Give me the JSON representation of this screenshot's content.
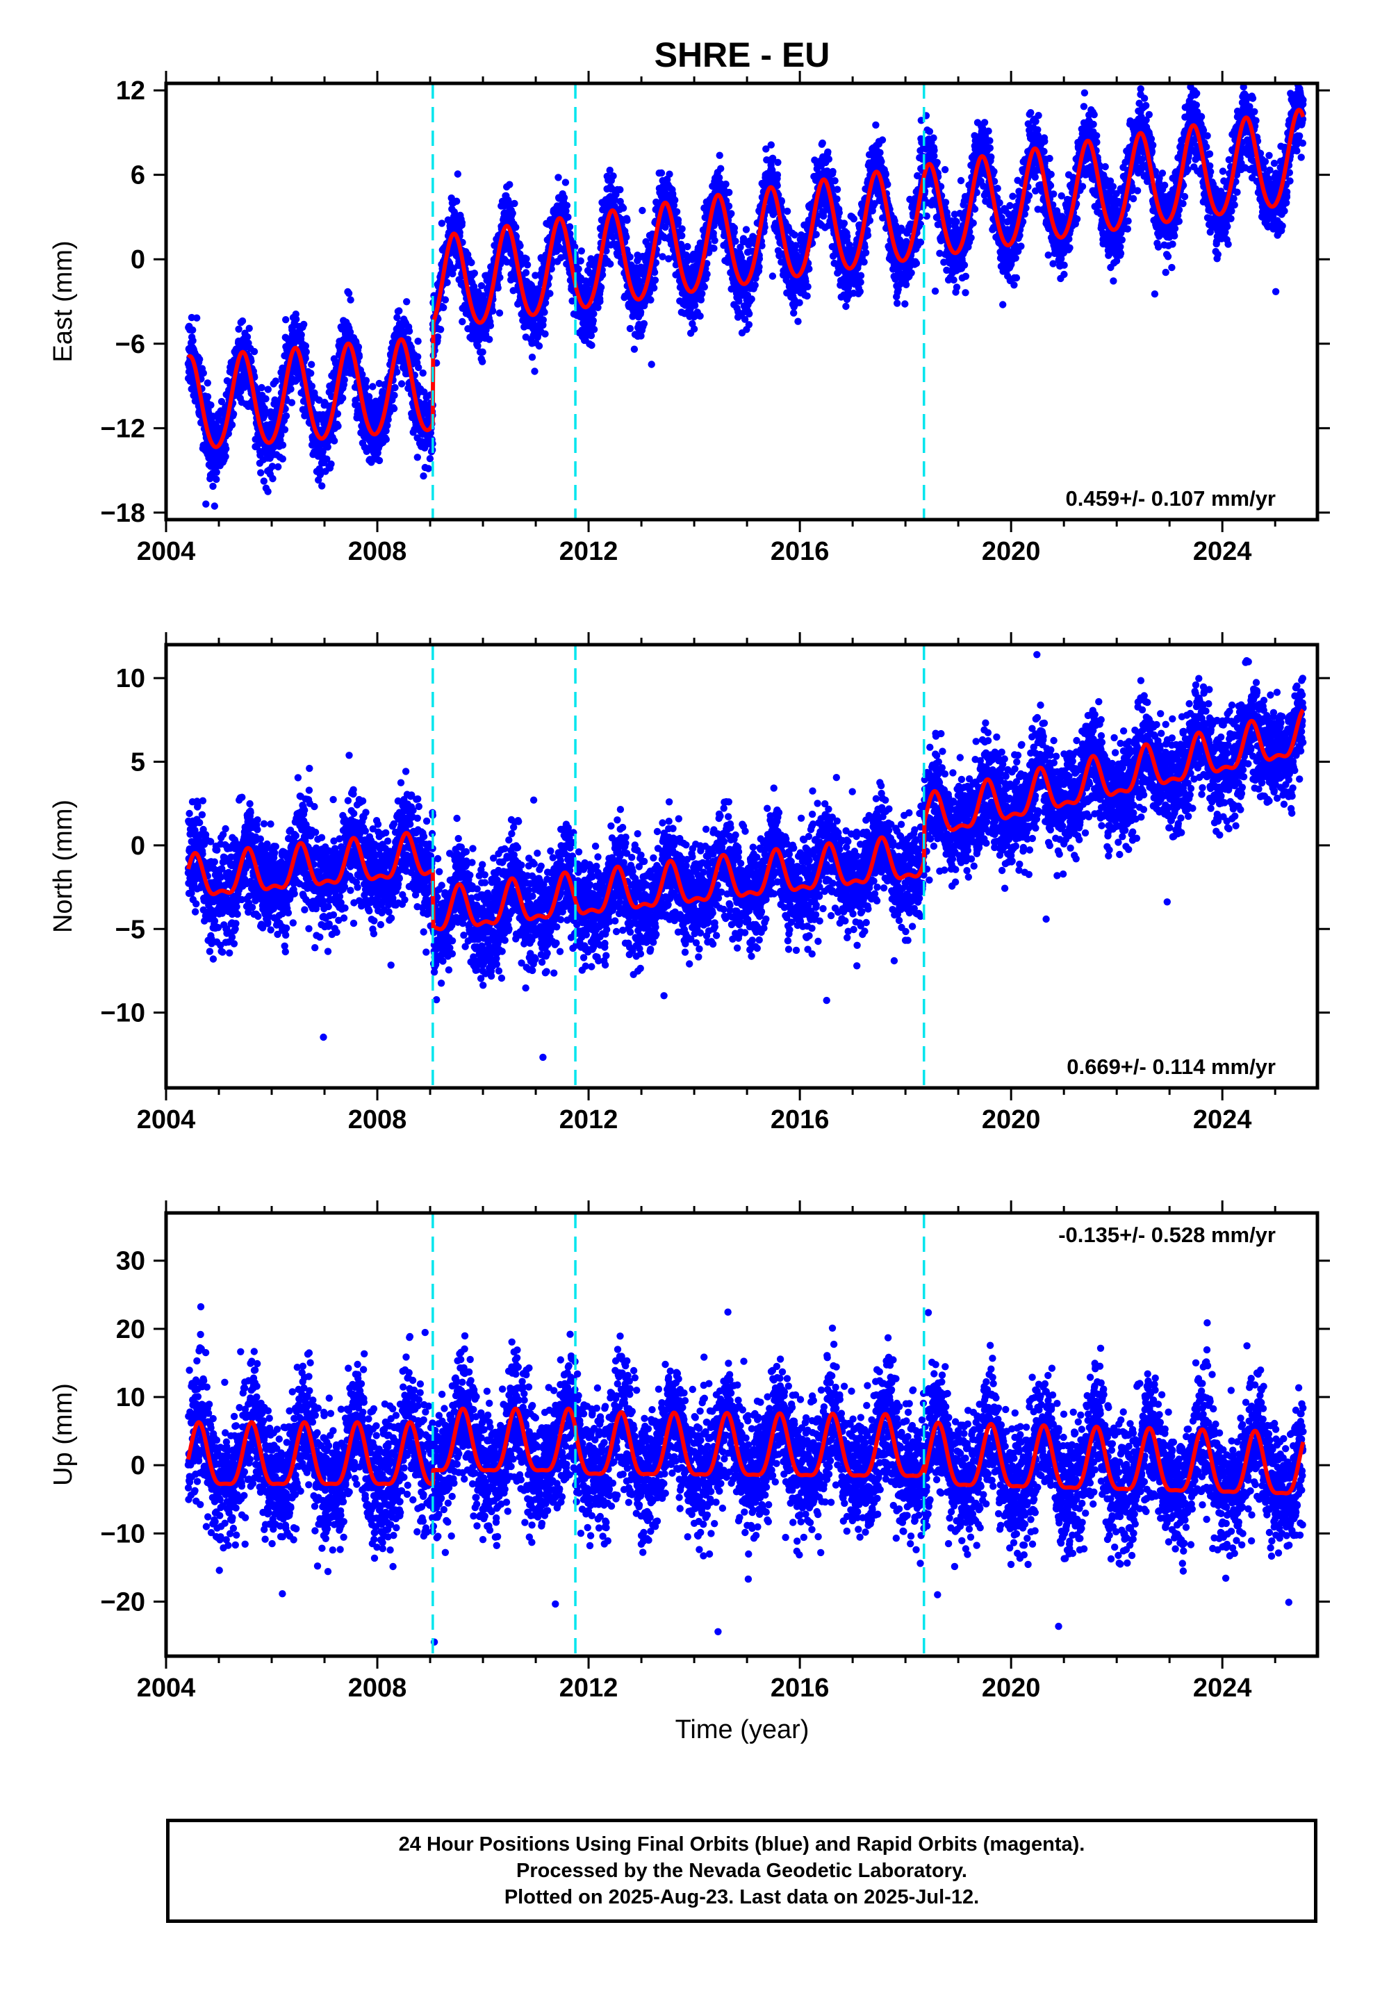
{
  "chart_data": {
    "type": "scatter",
    "title": "SHRE - EU",
    "xlabel": "Time (year)",
    "xlim": [
      2004,
      2025.8
    ],
    "x_ticks": [
      2004,
      2008,
      2012,
      2016,
      2020,
      2024
    ],
    "offset_lines": [
      2009.05,
      2011.75,
      2018.35
    ],
    "data_span": [
      2004.42,
      2025.53
    ],
    "colors": {
      "points": "#0000ff",
      "model": "#ff0000",
      "offsets": "#00e5ee",
      "frame": "#000000"
    },
    "panels": [
      {
        "id": "east",
        "ylabel": "East (mm)",
        "ylim": [
          -18.5,
          12.5
        ],
        "y_ticks": [
          -18,
          -12,
          -6,
          0,
          6,
          12
        ],
        "y_tick_labels": [
          "−18",
          "−12",
          "−6",
          "0",
          "6",
          "12"
        ],
        "rate_label": "0.459+/- 0.107 mm/yr",
        "rate_position": "bottom-right",
        "model": {
          "segments": [
            {
              "start": 2004.42,
              "end": 2009.05,
              "base_at_start": -10.5,
              "rate": 0.3
            },
            {
              "start": 2009.05,
              "end": 2025.53,
              "base_at_start": -2.0,
              "rate": 0.55
            }
          ],
          "annual_amplitude": 3.3,
          "annual_peak": 0.45,
          "semiannual_amplitude": 0.3,
          "semiannual_peak": 0.45,
          "scatter": 1.3
        }
      },
      {
        "id": "north",
        "ylabel": "North (mm)",
        "ylim": [
          -14.5,
          12
        ],
        "y_ticks": [
          -10,
          -5,
          0,
          5,
          10
        ],
        "y_tick_labels": [
          "−10",
          "−5",
          "0",
          "5",
          "10"
        ],
        "rate_label": "0.669+/- 0.114 mm/yr",
        "rate_position": "bottom-right",
        "model": {
          "segments": [
            {
              "start": 2004.42,
              "end": 2009.05,
              "base_at_start": -2.2,
              "rate": 0.3
            },
            {
              "start": 2009.05,
              "end": 2018.35,
              "base_at_start": -4.2,
              "rate": 0.35
            },
            {
              "start": 2018.35,
              "end": 2025.53,
              "base_at_start": 1.4,
              "rate": 0.7
            }
          ],
          "annual_amplitude": 1.2,
          "annual_peak": 0.55,
          "semiannual_amplitude": 0.5,
          "semiannual_peak": 0.55,
          "scatter": 1.5
        }
      },
      {
        "id": "up",
        "ylabel": "Up (mm)",
        "ylim": [
          -28,
          37
        ],
        "y_ticks": [
          -20,
          -10,
          0,
          10,
          20,
          30
        ],
        "y_tick_labels": [
          "−20",
          "−10",
          "0",
          "10",
          "20",
          "30"
        ],
        "rate_label": "-0.135+/- 0.528 mm/yr",
        "rate_position": "top-right",
        "model": {
          "segments": [
            {
              "start": 2004.42,
              "end": 2009.05,
              "base_at_start": 0.5,
              "rate": 0.0
            },
            {
              "start": 2009.05,
              "end": 2011.75,
              "base_at_start": 2.5,
              "rate": 0.0
            },
            {
              "start": 2011.75,
              "end": 2018.35,
              "base_at_start": 2.0,
              "rate": -0.05
            },
            {
              "start": 2018.35,
              "end": 2025.53,
              "base_at_start": 0.5,
              "rate": -0.2
            }
          ],
          "annual_amplitude": 4.5,
          "annual_peak": 0.62,
          "semiannual_amplitude": 1.3,
          "semiannual_peak": 0.62,
          "scatter": 4.5
        }
      }
    ]
  },
  "caption": {
    "lines": [
      "24 Hour Positions Using Final Orbits (blue) and Rapid Orbits (magenta).",
      "Processed by the Nevada Geodetic Laboratory.",
      "Plotted on 2025-Aug-23. Last data on 2025-Jul-12."
    ]
  }
}
